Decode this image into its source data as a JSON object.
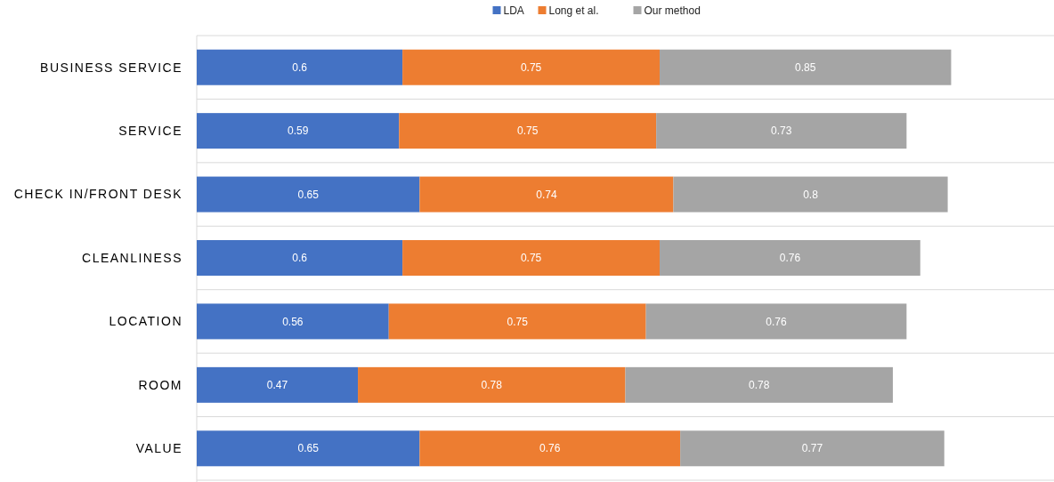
{
  "chart_data": {
    "type": "bar",
    "orientation": "horizontal",
    "stacked": true,
    "data_labels": true,
    "grid": "y",
    "legend": "top",
    "xlim": [
      0,
      2.5
    ],
    "tick_labels": "y",
    "categories": [
      "BUSINESS SERVICE",
      "SERVICE",
      "CHECK IN/FRONT DESK",
      "CLEANLINESS",
      "LOCATION",
      "ROOM",
      "VALUE"
    ],
    "series": [
      {
        "name": "LDA",
        "color": "#4472c4",
        "values": [
          0.6,
          0.59,
          0.65,
          0.6,
          0.56,
          0.47,
          0.65
        ]
      },
      {
        "name": "Long et al.",
        "color": "#ed7d31",
        "values": [
          0.75,
          0.75,
          0.74,
          0.75,
          0.75,
          0.78,
          0.76
        ]
      },
      {
        "name": "Our method",
        "color": "#a5a5a5",
        "values": [
          0.85,
          0.73,
          0.8,
          0.76,
          0.76,
          0.78,
          0.77
        ]
      }
    ]
  }
}
